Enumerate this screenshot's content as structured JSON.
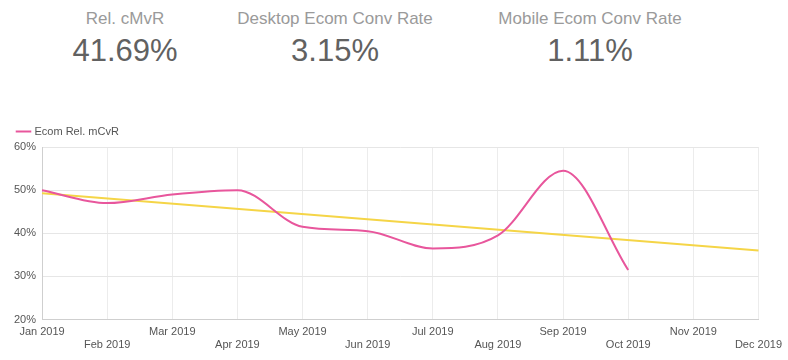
{
  "kpis": [
    {
      "label": "Rel. cMvR",
      "value": "41.69%"
    },
    {
      "label": "Desktop Ecom Conv Rate",
      "value": "3.15%"
    },
    {
      "label": "Mobile Ecom Conv Rate",
      "value": "1.11%"
    }
  ],
  "chart_data": {
    "type": "line",
    "categories": [
      "Jan 2019",
      "Feb 2019",
      "Mar 2019",
      "Apr 2019",
      "May 2019",
      "Jun 2019",
      "Jul 2019",
      "Aug 2019",
      "Sep 2019",
      "Oct 2019",
      "Nov 2019",
      "Dec 2019"
    ],
    "series": [
      {
        "name": "Ecom Rel. mCvR",
        "color": "#e8569c",
        "values": [
          50,
          47,
          49,
          50,
          41.5,
          40.5,
          36.5,
          39.5,
          54.5,
          31.5,
          null,
          null
        ]
      },
      {
        "color": "#f5d547",
        "values": [
          49.3,
          null,
          null,
          null,
          null,
          null,
          null,
          null,
          null,
          null,
          null,
          36
        ]
      }
    ],
    "ylim": [
      20,
      60
    ],
    "yticks": [
      {
        "value": 20,
        "label": "20%"
      },
      {
        "value": 30,
        "label": "30%"
      },
      {
        "value": 40,
        "label": "40%"
      },
      {
        "value": 50,
        "label": "50%"
      },
      {
        "value": 60,
        "label": "60%"
      }
    ],
    "grid": true,
    "legend": "top-left"
  }
}
